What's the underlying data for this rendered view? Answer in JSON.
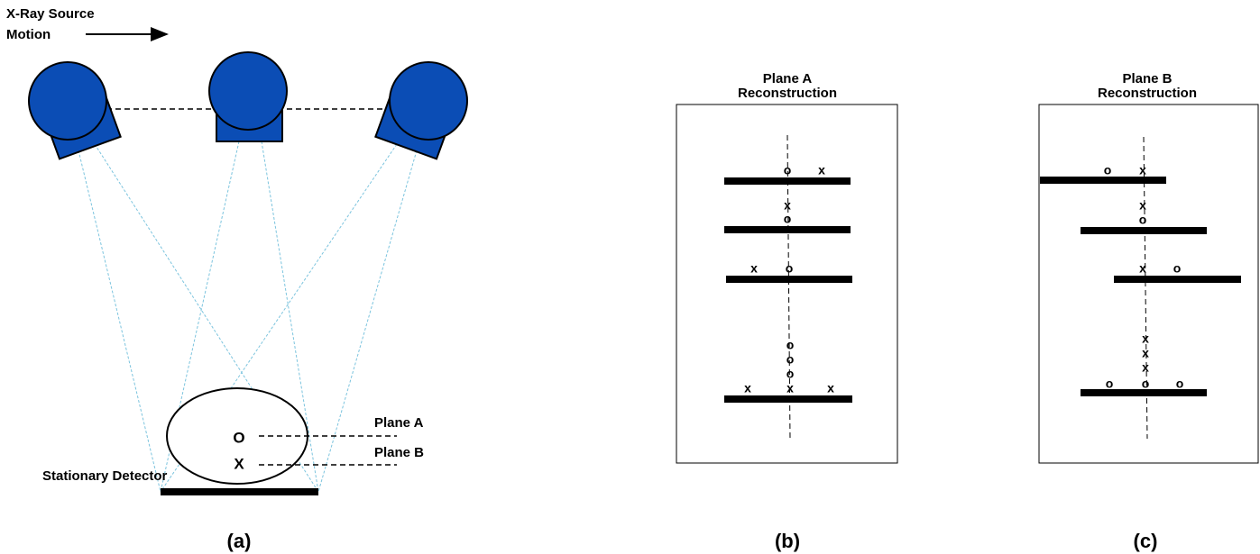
{
  "panel_a": {
    "source_label": [
      "X-Ray Source",
      "Motion"
    ],
    "detector_label": [
      "Stationary Detector"
    ],
    "object_labels": [
      "O",
      "X"
    ],
    "plane_labels": [
      "Plane A",
      "Plane B"
    ],
    "caption": "(a)"
  },
  "panel_b": {
    "title": [
      "Plane A",
      "Reconstruction"
    ],
    "markers": [
      "o",
      "x",
      "x",
      "o",
      "x",
      "o",
      "o",
      "o",
      "o",
      "x",
      "x",
      "x"
    ],
    "caption": "(b)"
  },
  "panel_c": {
    "title": [
      "Plane B",
      "Reconstruction"
    ],
    "markers": [
      "o",
      "x",
      "x",
      "o",
      "x",
      "o",
      "x",
      "x",
      "x",
      "o",
      "o",
      "o"
    ],
    "caption": "(c)"
  }
}
